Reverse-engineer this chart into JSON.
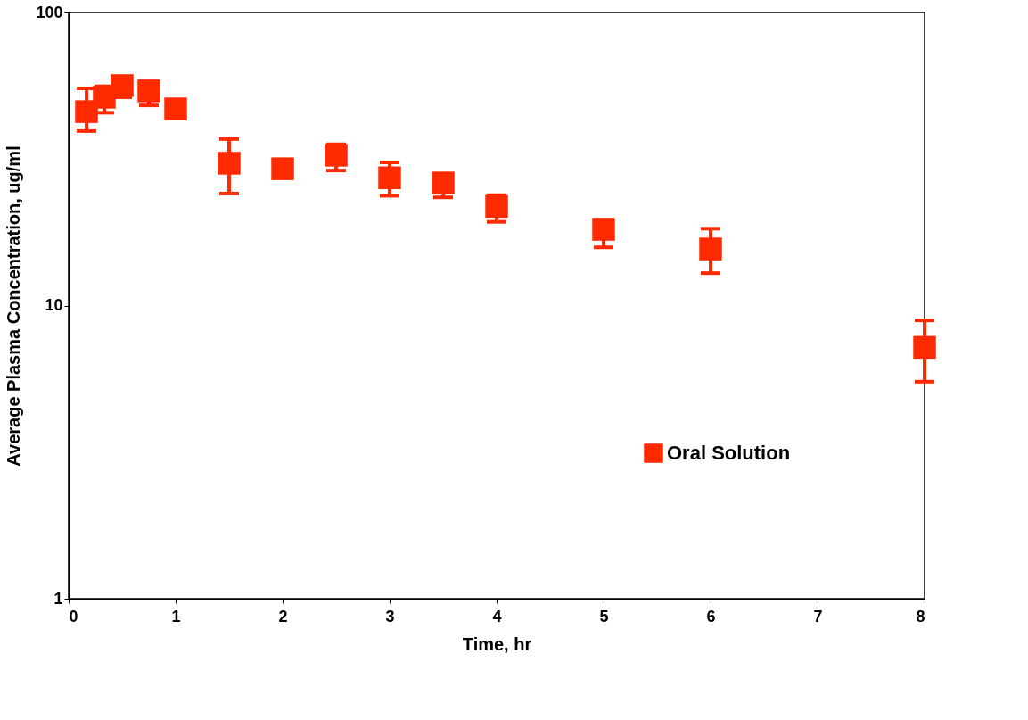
{
  "chart_data": {
    "type": "scatter",
    "xlabel": "Time, hr",
    "ylabel": "Average Plasma Concentration, ug/ml",
    "x": [
      0.167,
      0.333,
      0.5,
      0.75,
      1,
      1.5,
      2,
      2.5,
      3,
      3.5,
      4,
      5,
      6,
      8
    ],
    "series": [
      {
        "name": "Oral Solution",
        "color": "#ff2a00",
        "values": [
          45.9,
          51.4,
          56.3,
          54,
          46.9,
          30.6,
          29.3,
          32.6,
          27.3,
          26.2,
          21.8,
          18.2,
          15.6,
          7.2
        ],
        "errors": [
          [
            39.4,
            55.1
          ],
          [
            45.5,
            56
          ],
          [
            51.4,
            60
          ],
          [
            48.2,
            58
          ],
          null,
          [
            24.1,
            37
          ],
          null,
          [
            28.9,
            35.5
          ],
          [
            23.7,
            30.8
          ],
          [
            23.4,
            28
          ],
          [
            19.3,
            23.8
          ],
          [
            15.8,
            19.6
          ],
          [
            12.9,
            18.3
          ],
          [
            5.5,
            8.9
          ]
        ]
      }
    ],
    "xlim": [
      0,
      8
    ],
    "xticks": [
      0,
      1,
      2,
      3,
      4,
      5,
      6,
      7,
      8
    ],
    "ylim": [
      1,
      100
    ],
    "yticks": [
      1,
      10,
      100
    ],
    "log": true,
    "grid": false,
    "legend": "bottom right",
    "marker": "square"
  }
}
